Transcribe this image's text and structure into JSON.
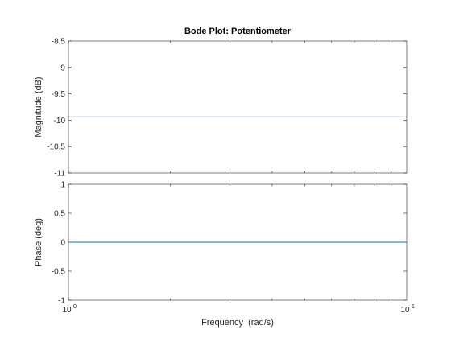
{
  "chart_data": {
    "type": "line",
    "title": "Bode Plot: Potentiometer",
    "xlabel": "Frequency  (rad/s)",
    "xscale": "log",
    "xlim": [
      1,
      10
    ],
    "xticks": [
      {
        "base": "10",
        "exp": "0"
      },
      {
        "base": "10",
        "exp": "1"
      }
    ],
    "grid": false,
    "line_color": "#0072BD",
    "axes": [
      {
        "name": "magnitude",
        "ylabel": "Magnitude (dB)",
        "ylim": [
          -11,
          -8.5
        ],
        "yticks": [
          -11,
          -10.5,
          -10,
          -9.5,
          -9,
          -8.5
        ],
        "ytick_labels": [
          "-11",
          "-10.5",
          "-10",
          "-9.5",
          "-9",
          "-8.5"
        ],
        "series": [
          {
            "x": [
              1,
              10
            ],
            "y": [
              -9.94,
              -9.94
            ]
          }
        ]
      },
      {
        "name": "phase",
        "ylabel": "Phase (deg)",
        "ylim": [
          -1,
          1
        ],
        "yticks": [
          -1,
          -0.5,
          0,
          0.5,
          1
        ],
        "ytick_labels": [
          "-1",
          "-0.5",
          "0",
          "0.5",
          "1"
        ],
        "series": [
          {
            "x": [
              1,
              10
            ],
            "y": [
              0,
              0
            ]
          }
        ]
      }
    ]
  }
}
